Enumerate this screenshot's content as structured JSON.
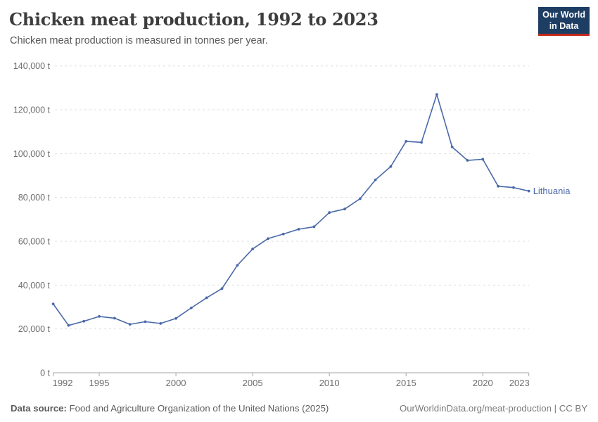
{
  "header": {
    "title": "Chicken meat production, 1992 to 2023",
    "subtitle": "Chicken meat production is measured in tonnes per year.",
    "logo": {
      "line1": "Our World",
      "line2": "in Data",
      "background_color": "#1d3d63",
      "accent_color": "#c5281c"
    }
  },
  "chart_data": {
    "type": "line",
    "title": "Chicken meat production, 1992 to 2023",
    "xlabel": "",
    "ylabel": "",
    "unit": "t",
    "xlim": [
      1992,
      2023
    ],
    "ylim": [
      0,
      140000
    ],
    "grid": "horizontal-dashed",
    "legend_position": "end-of-line",
    "yticks": [
      {
        "v": 0,
        "label": "0 t"
      },
      {
        "v": 20000,
        "label": "20,000 t"
      },
      {
        "v": 40000,
        "label": "40,000 t"
      },
      {
        "v": 60000,
        "label": "60,000 t"
      },
      {
        "v": 80000,
        "label": "80,000 t"
      },
      {
        "v": 100000,
        "label": "100,000 t"
      },
      {
        "v": 120000,
        "label": "120,000 t"
      },
      {
        "v": 140000,
        "label": "140,000 t"
      }
    ],
    "xticks": [
      1992,
      1995,
      2000,
      2005,
      2010,
      2015,
      2020,
      2023
    ],
    "series": [
      {
        "name": "Lithuania",
        "color": "#4a69a8",
        "years": [
          1992,
          1993,
          1994,
          1995,
          1996,
          1997,
          1998,
          1999,
          2000,
          2001,
          2002,
          2003,
          2004,
          2005,
          2006,
          2007,
          2008,
          2009,
          2010,
          2011,
          2012,
          2013,
          2014,
          2015,
          2016,
          2017,
          2018,
          2019,
          2020,
          2021,
          2022,
          2023
        ],
        "values": [
          31400,
          21600,
          23500,
          25700,
          24900,
          22100,
          23300,
          22500,
          24800,
          29600,
          34200,
          38400,
          49000,
          56500,
          61200,
          63300,
          65500,
          66600,
          73100,
          74700,
          79400,
          88000,
          94100,
          105600,
          105100,
          127000,
          103000,
          96900,
          97400,
          85100,
          84500,
          82900
        ]
      }
    ]
  },
  "footer": {
    "source_label": "Data source:",
    "source": "Food and Agriculture Organization of the United Nations (2025)",
    "link": "OurWorldinData.org/meat-production | CC BY"
  }
}
